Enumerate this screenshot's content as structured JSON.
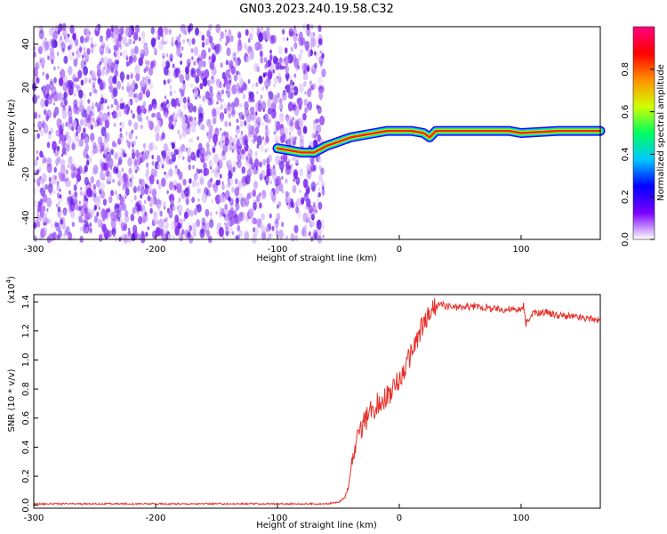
{
  "figure_title": "GN03.2023.240.19.58.C32",
  "chart_data": [
    {
      "type": "heatmap",
      "title": "",
      "xlabel": "Height of straight line (km)",
      "ylabel": "Frequency (Hz)",
      "xlim": [
        -300,
        165
      ],
      "ylim": [
        -50,
        48
      ],
      "xticks": [
        -300,
        -200,
        -100,
        0,
        100
      ],
      "xtick_labels": [
        "-300",
        "-200",
        "-100",
        "0",
        "100"
      ],
      "yticks": [
        -40,
        -20,
        0,
        20,
        40
      ],
      "ytick_labels": [
        "-40",
        "-20",
        "0",
        "20",
        "40"
      ],
      "noise_region_x": [
        -300,
        -62
      ],
      "signal_track": {
        "x": [
          -100,
          -90,
          -80,
          -70,
          -60,
          -50,
          -40,
          -30,
          -20,
          -10,
          0,
          10,
          20,
          25,
          30,
          40,
          60,
          90,
          100,
          130,
          165
        ],
        "y": [
          -8,
          -9,
          -10,
          -10,
          -7,
          -5,
          -3,
          -2,
          -1,
          0,
          0,
          0,
          -1,
          -3,
          0,
          0,
          0,
          0,
          -1,
          0,
          0
        ]
      },
      "colorbar": {
        "label": "Normalized spectral amplitude",
        "range": [
          0.0,
          1.0
        ],
        "ticks": [
          0.0,
          0.2,
          0.4,
          0.6,
          0.8
        ],
        "tick_labels": [
          "0.0",
          "0.2",
          "0.4",
          "0.6",
          "0.8"
        ],
        "colors": [
          "#ffffff",
          "#7b00ff",
          "#0000ff",
          "#00c8ff",
          "#00ff60",
          "#d0ff00",
          "#ff9000",
          "#ff0000",
          "#ff0080"
        ]
      },
      "grid": false
    },
    {
      "type": "line",
      "title": "",
      "xlabel": "Height of straight line (km)",
      "ylabel": "SNR (10 * v/v)",
      "y_scale_label": "(x10",
      "y_scale_exp": "4",
      "y_scale_close": ")",
      "xlim": [
        -300,
        165
      ],
      "ylim": [
        -0.02,
        1.45
      ],
      "xticks": [
        -300,
        -200,
        -100,
        0,
        100
      ],
      "xtick_labels": [
        "-300",
        "-200",
        "-100",
        "0",
        "100"
      ],
      "yticks": [
        0.0,
        0.2,
        0.4,
        0.6,
        0.8,
        1.0,
        1.2,
        1.4
      ],
      "ytick_labels": [
        "0.0",
        "0.2",
        "0.4",
        "0.6",
        "0.8",
        "1.0",
        "1.2",
        "1.4"
      ],
      "line_color": "#e8302a",
      "series": [
        {
          "x": [
            -300,
            -250,
            -200,
            -150,
            -100,
            -60,
            -50,
            -45,
            -42,
            -40,
            -35,
            -30,
            -25,
            -20,
            -15,
            -10,
            -5,
            0,
            5,
            10,
            15,
            20,
            25,
            30,
            35,
            40,
            50,
            60,
            70,
            80,
            90,
            100,
            102,
            104,
            110,
            120,
            130,
            140,
            150,
            160,
            165
          ],
          "y": [
            0.01,
            0.01,
            0.01,
            0.01,
            0.01,
            0.01,
            0.02,
            0.05,
            0.12,
            0.25,
            0.45,
            0.55,
            0.62,
            0.68,
            0.72,
            0.75,
            0.8,
            0.86,
            0.95,
            1.05,
            1.15,
            1.25,
            1.32,
            1.37,
            1.38,
            1.37,
            1.36,
            1.37,
            1.36,
            1.35,
            1.35,
            1.34,
            1.38,
            1.25,
            1.32,
            1.33,
            1.31,
            1.3,
            1.29,
            1.28,
            1.27
          ]
        }
      ],
      "grid": false
    }
  ]
}
